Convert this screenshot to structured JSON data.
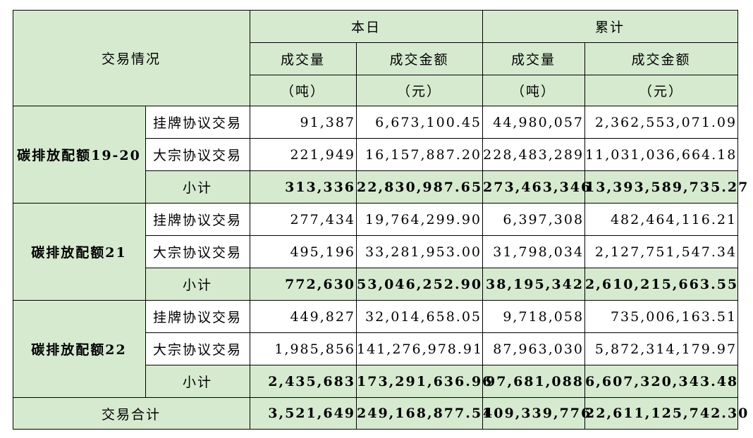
{
  "header": {
    "row_label": "交易情况",
    "today": "本日",
    "cumulative": "累计",
    "volume": "成交量",
    "volume_unit": "（吨）",
    "amount": "成交金额",
    "amount_unit": "（元）"
  },
  "groups": [
    {
      "name": "碳排放配额19-20",
      "rows": [
        {
          "type": "挂牌协议交易",
          "today_volume": "91,387",
          "today_amount": "6,673,100.45",
          "cum_volume": "44,980,057",
          "cum_amount": "2,362,553,071.09"
        },
        {
          "type": "大宗协议交易",
          "today_volume": "221,949",
          "today_amount": "16,157,887.20",
          "cum_volume": "228,483,289",
          "cum_amount": "11,031,036,664.18"
        },
        {
          "type": "小计",
          "today_volume": "313,336",
          "today_amount": "22,830,987.65",
          "cum_volume": "273,463,346",
          "cum_amount": "13,393,589,735.27"
        }
      ]
    },
    {
      "name": "碳排放配额21",
      "rows": [
        {
          "type": "挂牌协议交易",
          "today_volume": "277,434",
          "today_amount": "19,764,299.90",
          "cum_volume": "6,397,308",
          "cum_amount": "482,464,116.21"
        },
        {
          "type": "大宗协议交易",
          "today_volume": "495,196",
          "today_amount": "33,281,953.00",
          "cum_volume": "31,798,034",
          "cum_amount": "2,127,751,547.34"
        },
        {
          "type": "小计",
          "today_volume": "772,630",
          "today_amount": "53,046,252.90",
          "cum_volume": "38,195,342",
          "cum_amount": "2,610,215,663.55"
        }
      ]
    },
    {
      "name": "碳排放配额22",
      "rows": [
        {
          "type": "挂牌协议交易",
          "today_volume": "449,827",
          "today_amount": "32,014,658.05",
          "cum_volume": "9,718,058",
          "cum_amount": "735,006,163.51"
        },
        {
          "type": "大宗协议交易",
          "today_volume": "1,985,856",
          "today_amount": "141,276,978.91",
          "cum_volume": "87,963,030",
          "cum_amount": "5,872,314,179.97"
        },
        {
          "type": "小计",
          "today_volume": "2,435,683",
          "today_amount": "173,291,636.96",
          "cum_volume": "97,681,088",
          "cum_amount": "6,607,320,343.48"
        }
      ]
    }
  ],
  "total": {
    "label": "交易合计",
    "today_volume": "3,521,649",
    "today_amount": "249,168,877.51",
    "cum_volume": "409,339,776",
    "cum_amount": "22,611,125,742.30"
  },
  "colors": {
    "header_green": "#d6ead0",
    "border": "#000000"
  }
}
